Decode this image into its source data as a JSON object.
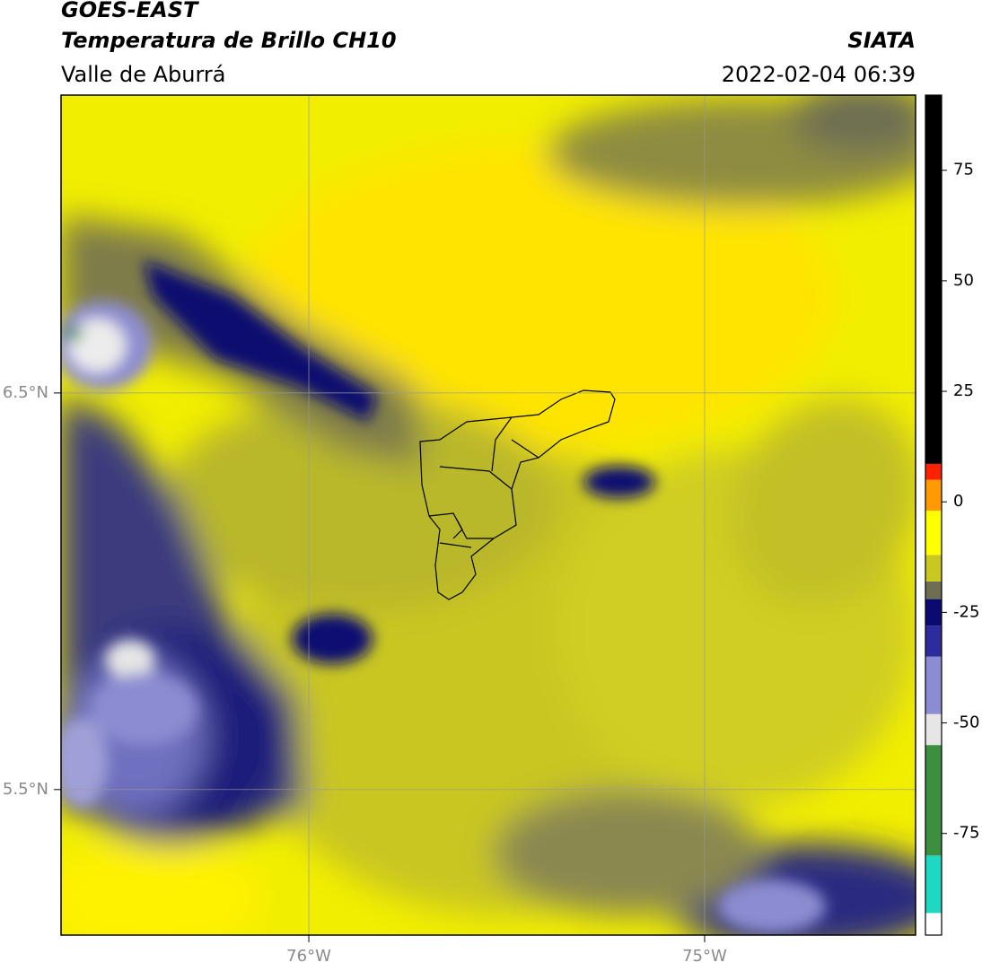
{
  "header": {
    "line1": "GOES-EAST",
    "line2": "Temperatura de Brillo CH10",
    "region": "Valle de Aburrá",
    "source": "SIATA",
    "datetime": "2022-02-04 06:39"
  },
  "map": {
    "lat_lim": [
      5.133,
      7.251
    ],
    "lon_lim": [
      -76.626,
      -74.467
    ],
    "lat_ticks": [
      {
        "value": 6.5,
        "label": "6.5°N"
      },
      {
        "value": 5.5,
        "label": "5.5°N"
      }
    ],
    "lon_ticks": [
      {
        "value": -76,
        "label": "76°W"
      },
      {
        "value": -75,
        "label": "75°W"
      }
    ]
  },
  "colorbar": {
    "lim": [
      -98,
      92
    ],
    "ticks": [
      75,
      50,
      25,
      0,
      -25,
      -50,
      -75
    ],
    "segments": [
      {
        "from": -98,
        "to": -93,
        "color": "#ffffff"
      },
      {
        "from": -93,
        "to": -80,
        "color": "#1fd8c4"
      },
      {
        "from": -80,
        "to": -55,
        "color": "#3b8f3e"
      },
      {
        "from": -55,
        "to": -48,
        "color": "#e6e6e6"
      },
      {
        "from": -48,
        "to": -35,
        "color": "#8c8cd2"
      },
      {
        "from": -35,
        "to": -28,
        "color": "#2c2c9c"
      },
      {
        "from": -28,
        "to": -22,
        "color": "#0a0a72"
      },
      {
        "from": -22,
        "to": -18,
        "color": "#6e6e52"
      },
      {
        "from": -18,
        "to": -12,
        "color": "#c9c820"
      },
      {
        "from": -12,
        "to": -2,
        "color": "#ffff00"
      },
      {
        "from": -2,
        "to": 5,
        "color": "#ff9a00"
      },
      {
        "from": 5,
        "to": 8.6,
        "color": "#ff2200"
      },
      {
        "from": 8.6,
        "to": 92,
        "color": "#000000"
      }
    ]
  }
}
